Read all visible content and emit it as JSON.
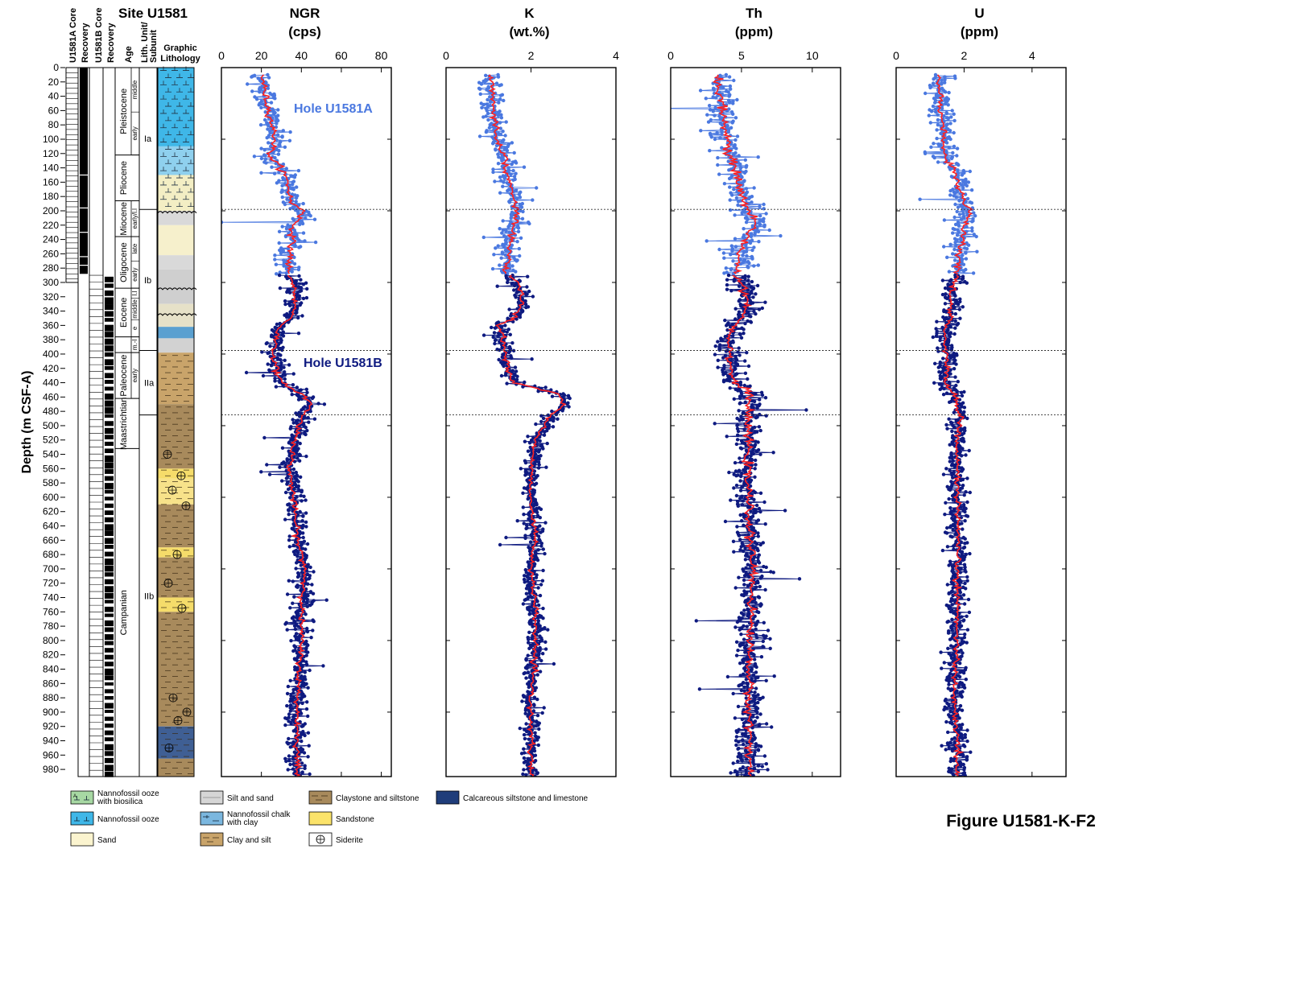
{
  "site_title": "Site U1581",
  "figure_label": "Figure U1581-K-F2",
  "depth_axis": {
    "label": "Depth (m CSF-A)",
    "range": [
      0,
      990
    ],
    "ticks": [
      0,
      20,
      40,
      60,
      80,
      100,
      120,
      140,
      160,
      180,
      200,
      220,
      240,
      260,
      280,
      300,
      320,
      340,
      360,
      380,
      400,
      420,
      440,
      460,
      480,
      500,
      520,
      540,
      560,
      580,
      600,
      620,
      640,
      660,
      680,
      700,
      720,
      740,
      760,
      780,
      800,
      820,
      840,
      860,
      880,
      900,
      920,
      940,
      960,
      980
    ]
  },
  "column_headers": {
    "u1581a_core": "U1581A Core",
    "recovery_a": "Recovery",
    "u1581b_core": "U1581B Core",
    "recovery_b": "Recovery",
    "age": "Age",
    "lith_unit": "Lith. Unit/",
    "lith_subunit": "Subunit",
    "graphic": "Graphic",
    "lithology": "Lithology"
  },
  "age_intervals": [
    {
      "label": "Pleistocene",
      "top": 0,
      "bottom": 122,
      "subs": [
        {
          "label": "middle",
          "top": 0,
          "bottom": 62
        },
        {
          "label": "early",
          "top": 62,
          "bottom": 122
        }
      ]
    },
    {
      "label": "Pliocene",
      "top": 122,
      "bottom": 186,
      "subs": []
    },
    {
      "label": "Miocene",
      "top": 186,
      "bottom": 236,
      "subs": [
        {
          "label": "early/l.l",
          "top": 186,
          "bottom": 236
        }
      ]
    },
    {
      "label": "Oligocene",
      "top": 236,
      "bottom": 308,
      "subs": [
        {
          "label": "late",
          "top": 236,
          "bottom": 270
        },
        {
          "label": "early",
          "top": 270,
          "bottom": 308
        }
      ]
    },
    {
      "label": "Eocene",
      "top": 308,
      "bottom": 376,
      "subs": [
        {
          "label": "l.l",
          "top": 308,
          "bottom": 322
        },
        {
          "label": "middle",
          "top": 322,
          "bottom": 352
        },
        {
          "label": "e",
          "top": 352,
          "bottom": 376
        }
      ]
    },
    {
      "label": "",
      "top": 376,
      "bottom": 398,
      "subs": [
        {
          "label": "m.-l",
          "top": 376,
          "bottom": 398
        }
      ]
    },
    {
      "label": "Paleocene",
      "top": 398,
      "bottom": 462,
      "subs": [
        {
          "label": "early",
          "top": 398,
          "bottom": 462
        }
      ]
    },
    {
      "label": "Maastrichtian",
      "top": 462,
      "bottom": 532,
      "subs": []
    },
    {
      "label": "Campanian",
      "top": 532,
      "bottom": 990,
      "subs": []
    }
  ],
  "lith_units": [
    {
      "label": "Ia",
      "top": 0,
      "bottom": 198
    },
    {
      "label": "Ib",
      "top": 198,
      "bottom": 395
    },
    {
      "label": "IIa",
      "top": 395,
      "bottom": 485
    },
    {
      "label": "IIb",
      "top": 485,
      "bottom": 990
    }
  ],
  "unit_boundaries": [
    198,
    395,
    485
  ],
  "hole_labels": {
    "a": "Hole U1581A",
    "b": "Hole U1581B"
  },
  "colors": {
    "hole_a": "#4a78e0",
    "hole_b": "#0e1a80",
    "trend": "#ff2020",
    "legend_swatch_dark": "#1f3d7a"
  },
  "panels": [
    {
      "id": "ngr",
      "title": "NGR",
      "unit": "(cps)",
      "ticks": [
        0,
        20,
        40,
        60,
        80
      ],
      "xlim": [
        0,
        85
      ]
    },
    {
      "id": "k",
      "title": "K",
      "unit": "(wt.%)",
      "ticks": [
        0,
        2,
        4
      ],
      "xlim": [
        0,
        4
      ]
    },
    {
      "id": "th",
      "title": "Th",
      "unit": "(ppm)",
      "ticks": [
        0,
        5,
        10
      ],
      "xlim": [
        0,
        12
      ]
    },
    {
      "id": "u",
      "title": "U",
      "unit": "(ppm)",
      "ticks": [
        0,
        2,
        4
      ],
      "xlim": [
        0,
        5
      ]
    }
  ],
  "chart_data": {
    "type": "scatter",
    "y_label": "Depth (m CSF-A)",
    "ylim": [
      990,
      0
    ],
    "depth_nodes": [
      0,
      40,
      100,
      125,
      140,
      160,
      190,
      200,
      220,
      250,
      290,
      300,
      330,
      350,
      360,
      370,
      400,
      430,
      440,
      455,
      470,
      490,
      520,
      560,
      600,
      660,
      700,
      760,
      800,
      880,
      940,
      990
    ],
    "series": [
      {
        "name": "Hole U1581A",
        "panel": "ngr",
        "depth_range": [
          10,
          288
        ],
        "scatter": 7,
        "trend": [
          20,
          22,
          27,
          24,
          30,
          33,
          35,
          42,
          36,
          35,
          33,
          32,
          33,
          33,
          30,
          27,
          27,
          26,
          30,
          42,
          44,
          42,
          37,
          35,
          35,
          40,
          43,
          42,
          40,
          38,
          38,
          38
        ]
      },
      {
        "name": "Hole U1581B",
        "panel": "ngr",
        "depth_range": [
          290,
          990
        ],
        "scatter": 6,
        "trend": [
          20,
          22,
          27,
          24,
          30,
          33,
          35,
          42,
          36,
          35,
          33,
          36,
          37,
          35,
          30,
          28,
          26,
          28,
          30,
          40,
          45,
          40,
          37,
          34,
          36,
          38,
          42,
          40,
          40,
          38,
          38,
          38
        ]
      },
      {
        "name": "Hole U1581A",
        "panel": "k",
        "depth_range": [
          10,
          288
        ],
        "scatter": 0.3,
        "trend": [
          1.0,
          1.1,
          1.2,
          1.4,
          1.4,
          1.5,
          1.6,
          1.7,
          1.6,
          1.5,
          1.4,
          1.4,
          1.6,
          1.6,
          1.2,
          1.3,
          1.4,
          1.5,
          1.6,
          2.6,
          2.8,
          2.4,
          2.1,
          2.0,
          2.0,
          2.1,
          2.0,
          2.1,
          2.1,
          2.0,
          2.0,
          2.0
        ]
      },
      {
        "name": "Hole U1581B",
        "panel": "k",
        "depth_range": [
          290,
          990
        ],
        "scatter": 0.25,
        "trend": [
          1.0,
          1.1,
          1.2,
          1.4,
          1.4,
          1.5,
          1.6,
          1.7,
          1.6,
          1.5,
          1.5,
          1.7,
          1.8,
          1.6,
          1.2,
          1.3,
          1.4,
          1.5,
          1.6,
          2.6,
          2.8,
          2.4,
          2.1,
          2.0,
          2.0,
          2.1,
          2.0,
          2.1,
          2.1,
          2.0,
          2.0,
          2.0
        ]
      },
      {
        "name": "Hole U1581A",
        "panel": "th",
        "depth_range": [
          10,
          288
        ],
        "scatter": 1.4,
        "trend": [
          3.2,
          3.5,
          4.0,
          4.1,
          4.6,
          4.8,
          5.2,
          5.6,
          6.0,
          5.0,
          4.6,
          4.6,
          5.2,
          5.2,
          4.6,
          4.0,
          4.2,
          4.3,
          4.6,
          5.8,
          5.5,
          5.5,
          5.5,
          5.4,
          5.5,
          5.6,
          5.8,
          5.7,
          5.6,
          5.5,
          5.6,
          5.6
        ]
      },
      {
        "name": "Hole U1581B",
        "panel": "th",
        "depth_range": [
          290,
          990
        ],
        "scatter": 1.2,
        "trend": [
          3.2,
          3.5,
          4.0,
          4.1,
          4.6,
          4.8,
          5.2,
          5.6,
          6.0,
          5.0,
          4.6,
          5.0,
          5.5,
          5.0,
          4.6,
          4.2,
          4.2,
          4.3,
          4.6,
          5.6,
          5.5,
          5.4,
          5.5,
          5.4,
          5.5,
          5.6,
          5.8,
          5.7,
          5.6,
          5.5,
          5.6,
          5.6
        ]
      },
      {
        "name": "Hole U1581A",
        "panel": "u",
        "depth_range": [
          10,
          288
        ],
        "scatter": 0.4,
        "trend": [
          1.2,
          1.3,
          1.4,
          1.4,
          1.7,
          1.8,
          2.0,
          2.2,
          2.0,
          1.9,
          1.8,
          1.7,
          1.6,
          1.6,
          1.5,
          1.4,
          1.5,
          1.5,
          1.4,
          1.7,
          1.8,
          1.9,
          1.8,
          1.8,
          1.8,
          1.8,
          1.8,
          1.8,
          1.8,
          1.7,
          1.8,
          1.8
        ]
      },
      {
        "name": "Hole U1581B",
        "panel": "u",
        "depth_range": [
          290,
          990
        ],
        "scatter": 0.35,
        "trend": [
          1.2,
          1.3,
          1.4,
          1.4,
          1.7,
          1.8,
          2.0,
          2.2,
          2.0,
          1.9,
          1.8,
          1.7,
          1.6,
          1.6,
          1.5,
          1.4,
          1.5,
          1.5,
          1.4,
          1.7,
          1.8,
          1.9,
          1.8,
          1.8,
          1.8,
          1.8,
          1.8,
          1.8,
          1.8,
          1.7,
          1.8,
          1.8
        ]
      }
    ]
  },
  "legend": [
    {
      "label": "Nannofossil ooze with biosilica",
      "lines": [
        "Nannofossil ooze",
        "with biosilica"
      ],
      "swatch": "ooze-biosilica"
    },
    {
      "label": "Nannofossil ooze",
      "lines": [
        "Nannofossil ooze"
      ],
      "swatch": "ooze"
    },
    {
      "label": "Sand",
      "lines": [
        "Sand"
      ],
      "swatch": "sand"
    },
    {
      "label": "Silt and sand",
      "lines": [
        "Silt and sand"
      ],
      "swatch": "silt-sand"
    },
    {
      "label": "Nannofossil chalk with clay",
      "lines": [
        "Nannofossil chalk",
        "with clay"
      ],
      "swatch": "chalk-clay"
    },
    {
      "label": "Clay and silt",
      "lines": [
        "Clay and silt"
      ],
      "swatch": "clay-silt"
    },
    {
      "label": "Claystone and siltstone",
      "lines": [
        "Claystone and siltstone"
      ],
      "swatch": "claystone"
    },
    {
      "label": "Sandstone",
      "lines": [
        "Sandstone"
      ],
      "swatch": "sandstone"
    },
    {
      "label": "Siderite",
      "lines": [
        "Siderite"
      ],
      "swatch": "siderite"
    },
    {
      "label": "Calcareous siltstone and limestone",
      "lines": [
        "Calcareous siltstone and limestone"
      ],
      "swatch": "calc-limestone"
    }
  ]
}
